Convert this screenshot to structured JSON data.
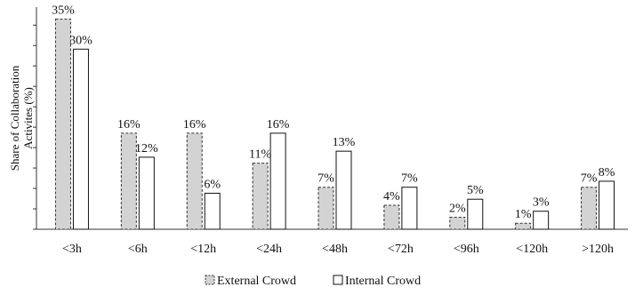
{
  "chart_data": {
    "type": "bar",
    "categories": [
      "<3h",
      "<6h",
      "<12h",
      "<24h",
      "<48h",
      "<72h",
      "<96h",
      "<120h",
      ">120h"
    ],
    "series": [
      {
        "name": "External Crowd",
        "values": [
          35,
          16,
          16,
          11,
          7,
          4,
          2,
          1,
          7
        ],
        "labels": [
          "35%",
          "16%",
          "16%",
          "11%",
          "7%",
          "4%",
          "2%",
          "1%",
          "7%"
        ],
        "color": "#d3d3d3",
        "stroke": "#333333",
        "dashed": true
      },
      {
        "name": "Internal Crowd",
        "values": [
          30,
          12,
          6,
          16,
          13,
          7,
          5,
          3,
          8
        ],
        "labels": [
          "30%",
          "12%",
          "6%",
          "16%",
          "13%",
          "7%",
          "5%",
          "3%",
          "8%"
        ],
        "color": "#ffffff",
        "stroke": "#111111",
        "dashed": false
      }
    ],
    "ylabel_lines": [
      "Share of Collaboration",
      "Activites (%)"
    ],
    "ylim": [
      0,
      37
    ],
    "ytick_step": 3.4,
    "legend_position": "bottom-center",
    "grid": false
  }
}
